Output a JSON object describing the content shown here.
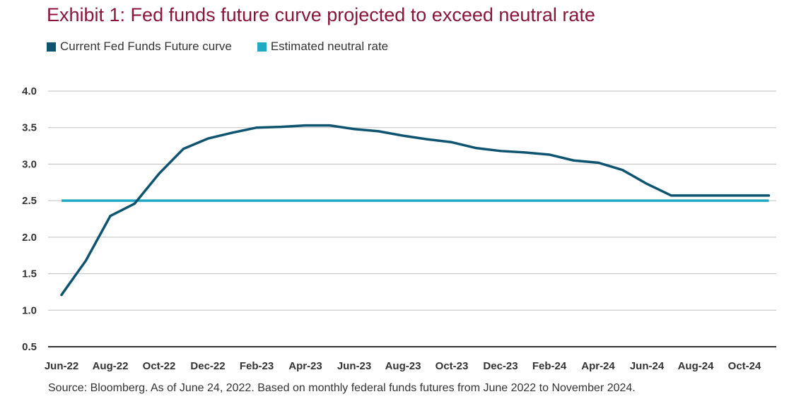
{
  "title": "Exhibit 1: Fed funds future curve projected to exceed neutral rate",
  "source": "Source: Bloomberg. As of June 24, 2022. Based on monthly federal funds futures from June 2022 to November 2024.",
  "colors": {
    "title": "#8a1538",
    "future_curve": "#0e5470",
    "neutral_rate": "#1fa9c4",
    "grid": "#bfbfbf",
    "axis": "#333333"
  },
  "chart_data": {
    "type": "line",
    "title": "Exhibit 1: Fed funds future curve projected to exceed neutral rate",
    "xlabel": "",
    "ylabel": "",
    "ylim": [
      0.5,
      4.0
    ],
    "yticks": [
      "4.0",
      "3.5",
      "3.0",
      "2.5",
      "2.0",
      "1.5",
      "1.0",
      "0.5"
    ],
    "ytick_values": [
      4.0,
      3.5,
      3.0,
      2.5,
      2.0,
      1.5,
      1.0,
      0.5
    ],
    "grid": true,
    "legend_position": "top-left",
    "x": [
      "Jun-22",
      "Jul-22",
      "Aug-22",
      "Sep-22",
      "Oct-22",
      "Nov-22",
      "Dec-22",
      "Jan-23",
      "Feb-23",
      "Mar-23",
      "Apr-23",
      "May-23",
      "Jun-23",
      "Jul-23",
      "Aug-23",
      "Sep-23",
      "Oct-23",
      "Nov-23",
      "Dec-23",
      "Jan-24",
      "Feb-24",
      "Mar-24",
      "Apr-24",
      "May-24",
      "Jun-24",
      "Jul-24",
      "Aug-24",
      "Sep-24",
      "Oct-24",
      "Nov-24"
    ],
    "xtick_labels": [
      "Jun-22",
      "Aug-22",
      "Oct-22",
      "Dec-22",
      "Feb-23",
      "Apr-23",
      "Jun-23",
      "Aug-23",
      "Oct-23",
      "Dec-23",
      "Feb-24",
      "Apr-24",
      "Jun-24",
      "Aug-24",
      "Oct-24"
    ],
    "series": [
      {
        "name": "Current Fed Funds Future curve",
        "color": "#0e5470",
        "values": [
          1.21,
          1.68,
          2.29,
          2.46,
          2.87,
          3.21,
          3.35,
          3.43,
          3.5,
          3.51,
          3.53,
          3.53,
          3.48,
          3.45,
          3.39,
          3.34,
          3.3,
          3.22,
          3.18,
          3.16,
          3.13,
          3.05,
          3.02,
          2.92,
          2.73,
          2.57,
          2.57,
          2.57,
          2.57,
          2.57
        ]
      },
      {
        "name": "Estimated neutral rate",
        "color": "#1fa9c4",
        "values": [
          2.5,
          2.5,
          2.5,
          2.5,
          2.5,
          2.5,
          2.5,
          2.5,
          2.5,
          2.5,
          2.5,
          2.5,
          2.5,
          2.5,
          2.5,
          2.5,
          2.5,
          2.5,
          2.5,
          2.5,
          2.5,
          2.5,
          2.5,
          2.5,
          2.5,
          2.5,
          2.5,
          2.5,
          2.5,
          2.5
        ]
      }
    ]
  }
}
